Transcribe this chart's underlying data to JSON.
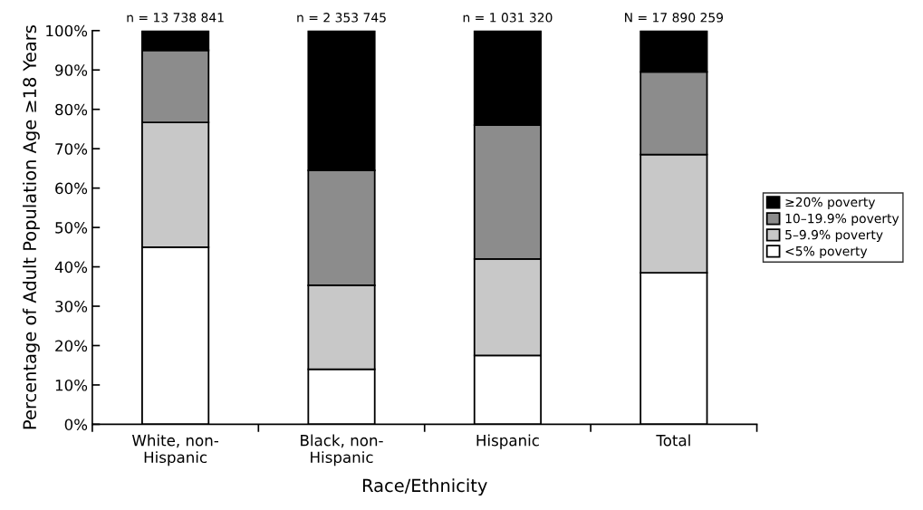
{
  "chart_data": {
    "type": "bar",
    "stacked": true,
    "xlabel": "Race/Ethnicity",
    "ylabel": "Percentage of Adult Population Age ≥18 Years",
    "categories": [
      "White, non-\nHispanic",
      "Black, non-\nHispanic",
      "Hispanic",
      "Total"
    ],
    "series": [
      {
        "name": "<5% poverty",
        "color": "#ffffff",
        "values": [
          45,
          14,
          17.5,
          38.5
        ]
      },
      {
        "name": "5–9.9% poverty",
        "color": "#c8c8c8",
        "values": [
          31.7,
          21.3,
          24.5,
          30
        ]
      },
      {
        "name": "10–19.9% poverty",
        "color": "#8c8c8c",
        "values": [
          18.3,
          29.2,
          34,
          21
        ]
      },
      {
        "name": "≥20% poverty",
        "color": "#000000",
        "values": [
          5,
          35.5,
          24,
          10.5
        ]
      }
    ],
    "annotations": [
      "n = 13 738 841",
      "n = 2 353 745",
      "n = 1 031 320",
      "N = 17 890 259"
    ],
    "ylim": [
      0,
      100
    ],
    "yticks": [
      {
        "value": 0,
        "label": "0%"
      },
      {
        "value": 10,
        "label": "10%"
      },
      {
        "value": 20,
        "label": "20%"
      },
      {
        "value": 30,
        "label": "30%"
      },
      {
        "value": 40,
        "label": "40%"
      },
      {
        "value": 50,
        "label": "50%"
      },
      {
        "value": 60,
        "label": "60%"
      },
      {
        "value": 70,
        "label": "70%"
      },
      {
        "value": 80,
        "label": "80%"
      },
      {
        "value": 90,
        "label": "90%"
      },
      {
        "value": 100,
        "label": "100%"
      }
    ],
    "grid": false,
    "legend": "right"
  }
}
